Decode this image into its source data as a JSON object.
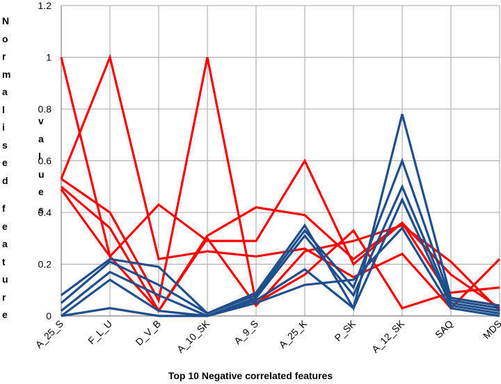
{
  "chart_data": {
    "type": "line",
    "title": "",
    "xlabel": "Top 10 Negative correlated features",
    "ylabel_col1": "Normalised feature",
    "ylabel_col2": "values",
    "categories": [
      "A_25_S",
      "F_L_U",
      "D_V_B",
      "A_10_SK",
      "A_9_S",
      "A_25_K",
      "P_SK",
      "A_12_SK",
      "SAQ",
      "MDS"
    ],
    "ylim": [
      0,
      1.2
    ],
    "yticks": [
      "0",
      "0.2",
      "0.4",
      "0.6",
      "0.8",
      "1",
      "1.2"
    ],
    "grid": true,
    "colors": {
      "red": "#ff0000",
      "blue": "#1f4e8c",
      "grid": "#a6a6a6"
    },
    "series": [
      {
        "color": "red",
        "values": [
          1.0,
          0.23,
          0.43,
          0.29,
          0.29,
          0.6,
          0.2,
          0.36,
          0.07,
          0.04
        ]
      },
      {
        "color": "red",
        "values": [
          0.53,
          1.0,
          0.22,
          0.25,
          0.23,
          0.26,
          0.15,
          0.24,
          0.03,
          0.22
        ]
      },
      {
        "color": "red",
        "values": [
          0.53,
          0.4,
          0.06,
          1.0,
          0.05,
          0.16,
          0.33,
          0.03,
          0.09,
          0.11
        ]
      },
      {
        "color": "red",
        "values": [
          0.5,
          0.34,
          0.02,
          0.31,
          0.42,
          0.39,
          0.22,
          0.36,
          0.16,
          0.03
        ]
      },
      {
        "color": "red",
        "values": [
          0.49,
          0.23,
          0.02,
          0.3,
          0.04,
          0.25,
          0.29,
          0.35,
          0.21,
          0.02
        ]
      },
      {
        "color": "blue",
        "values": [
          0.08,
          0.22,
          0.19,
          0.01,
          0.09,
          0.35,
          0.03,
          0.78,
          0.07,
          0.04
        ]
      },
      {
        "color": "blue",
        "values": [
          0.05,
          0.21,
          0.12,
          0.01,
          0.08,
          0.33,
          0.11,
          0.6,
          0.06,
          0.03
        ]
      },
      {
        "color": "blue",
        "values": [
          0.02,
          0.17,
          0.08,
          0.0,
          0.07,
          0.31,
          0.08,
          0.5,
          0.05,
          0.02
        ]
      },
      {
        "color": "blue",
        "values": [
          0.0,
          0.14,
          0.02,
          0.0,
          0.06,
          0.18,
          0.03,
          0.45,
          0.04,
          0.01
        ]
      },
      {
        "color": "blue",
        "values": [
          0.0,
          0.03,
          0.0,
          0.0,
          0.05,
          0.12,
          0.14,
          0.34,
          0.03,
          0.0
        ]
      }
    ]
  }
}
